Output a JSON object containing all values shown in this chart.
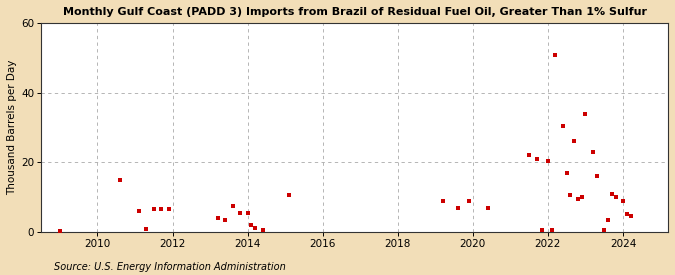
{
  "title": "Monthly Gulf Coast (PADD 3) Imports from Brazil of Residual Fuel Oil, Greater Than 1% Sulfur",
  "ylabel": "Thousand Barrels per Day",
  "source": "Source: U.S. Energy Information Administration",
  "background_color": "#f2deb8",
  "plot_background": "#ffffff",
  "dot_color": "#cc0000",
  "dot_size": 8,
  "xlim": [
    2008.5,
    2025.2
  ],
  "ylim": [
    0,
    60
  ],
  "yticks": [
    0,
    20,
    40,
    60
  ],
  "xticks": [
    2010,
    2012,
    2014,
    2016,
    2018,
    2020,
    2022,
    2024
  ],
  "grid_color": "#aaaaaa",
  "grid_style": "--",
  "title_fontsize": 8.0,
  "ylabel_fontsize": 7.5,
  "tick_fontsize": 7.5,
  "source_fontsize": 7.0,
  "data_points": [
    [
      2009.0,
      0.2
    ],
    [
      2010.6,
      15.0
    ],
    [
      2011.1,
      6.0
    ],
    [
      2011.3,
      0.8
    ],
    [
      2011.5,
      6.5
    ],
    [
      2011.7,
      6.5
    ],
    [
      2011.9,
      6.5
    ],
    [
      2013.2,
      4.0
    ],
    [
      2013.4,
      3.5
    ],
    [
      2013.6,
      7.5
    ],
    [
      2013.8,
      5.5
    ],
    [
      2014.0,
      5.5
    ],
    [
      2014.1,
      2.0
    ],
    [
      2014.2,
      1.0
    ],
    [
      2014.4,
      0.5
    ],
    [
      2015.1,
      10.5
    ],
    [
      2019.2,
      9.0
    ],
    [
      2019.6,
      7.0
    ],
    [
      2019.9,
      9.0
    ],
    [
      2020.4,
      7.0
    ],
    [
      2021.5,
      22.0
    ],
    [
      2021.7,
      21.0
    ],
    [
      2021.85,
      0.5
    ],
    [
      2022.0,
      20.5
    ],
    [
      2022.1,
      0.5
    ],
    [
      2022.2,
      51.0
    ],
    [
      2022.4,
      30.5
    ],
    [
      2022.5,
      17.0
    ],
    [
      2022.6,
      10.5
    ],
    [
      2022.7,
      26.0
    ],
    [
      2022.8,
      9.5
    ],
    [
      2022.9,
      10.0
    ],
    [
      2023.0,
      34.0
    ],
    [
      2023.2,
      23.0
    ],
    [
      2023.3,
      16.0
    ],
    [
      2023.5,
      0.5
    ],
    [
      2023.6,
      3.5
    ],
    [
      2023.7,
      11.0
    ],
    [
      2023.8,
      10.0
    ],
    [
      2024.0,
      9.0
    ],
    [
      2024.1,
      5.0
    ],
    [
      2024.2,
      4.5
    ]
  ]
}
